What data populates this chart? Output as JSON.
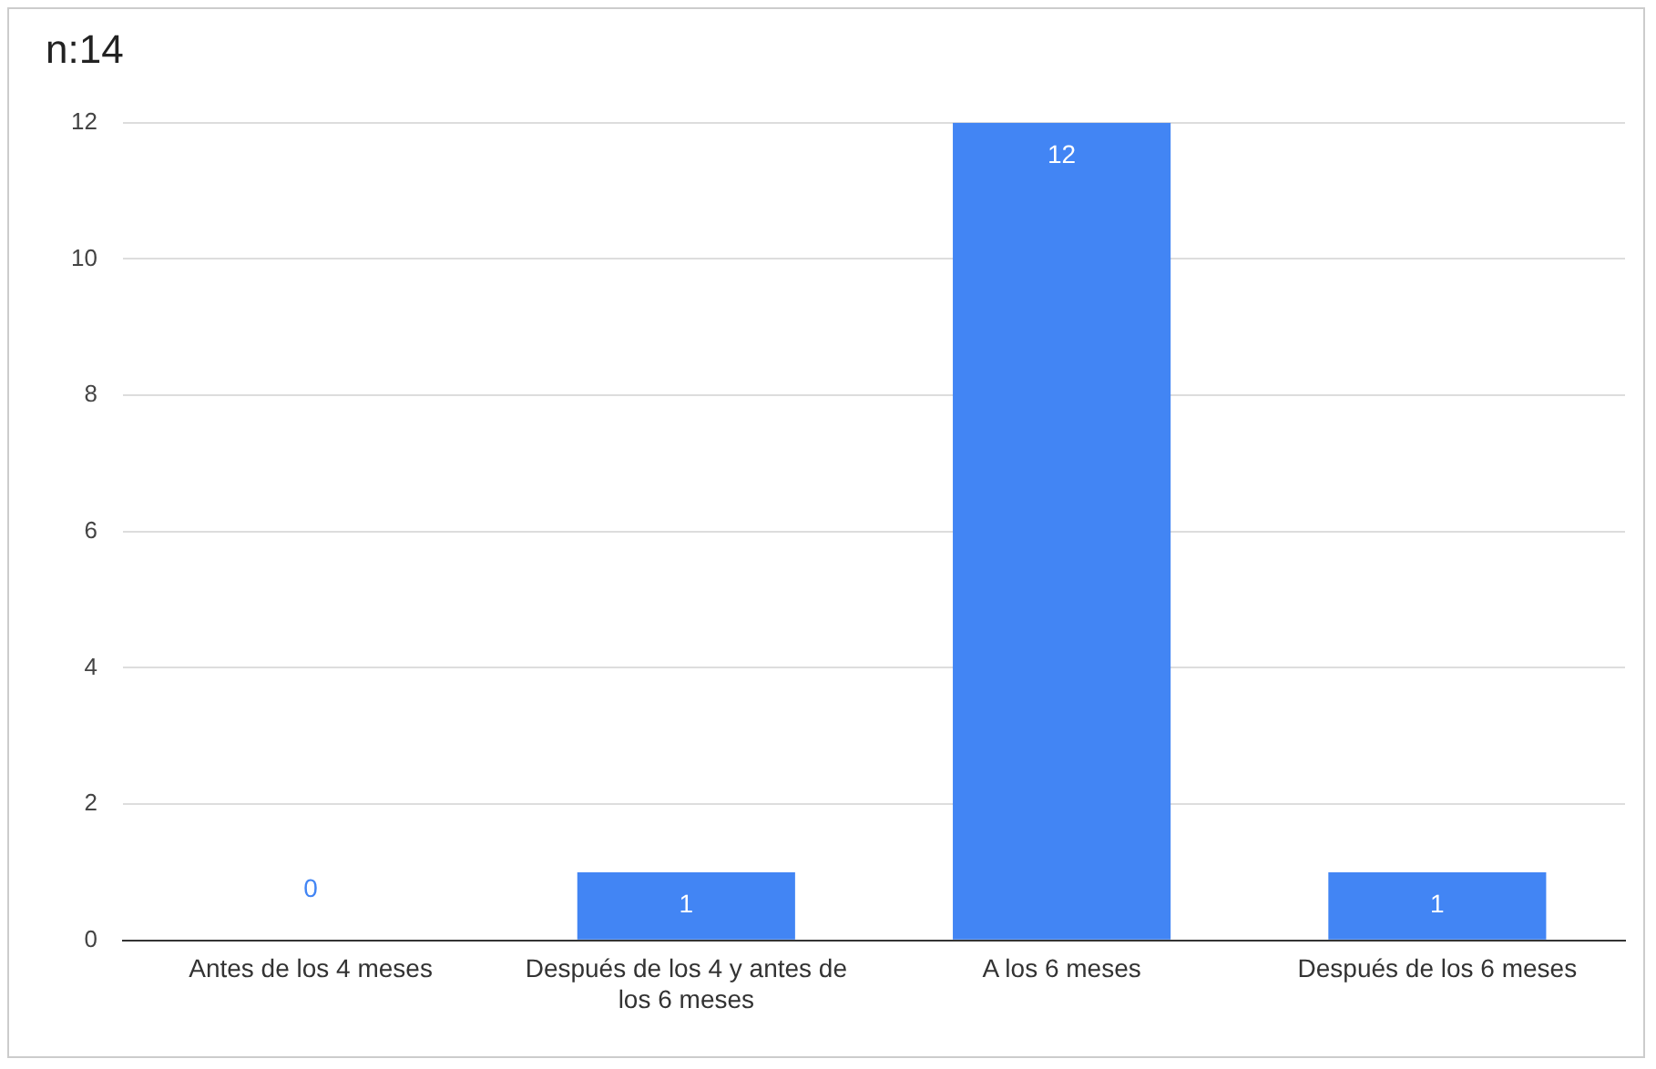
{
  "chart_data": {
    "type": "bar",
    "title": "n:14",
    "categories": [
      "Antes de los 4 meses",
      "Después de los 4 y antes de los 6 meses",
      "A los 6 meses",
      "Después de los 6 meses"
    ],
    "values": [
      0,
      1,
      12,
      1
    ],
    "color": "#4285f4",
    "ylim": [
      0,
      12
    ],
    "yticks": [
      0,
      2,
      4,
      6,
      8,
      10,
      12
    ],
    "grid": "y",
    "legend": false,
    "data_labels": true
  }
}
